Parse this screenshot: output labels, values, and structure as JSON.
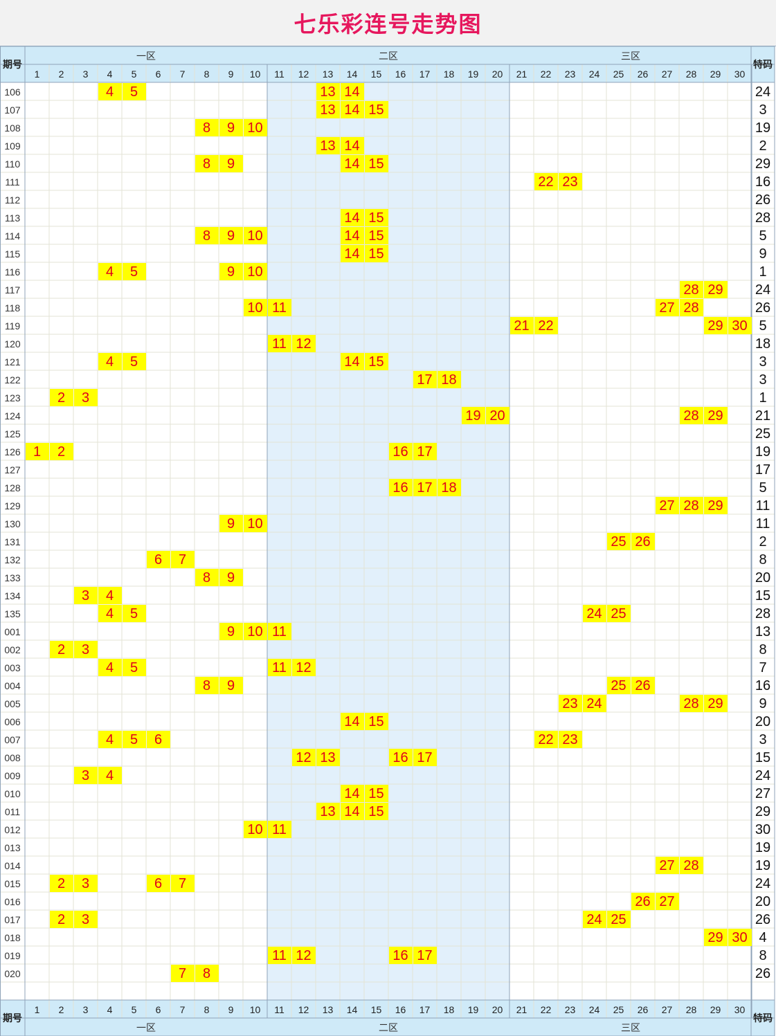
{
  "title": "七乐彩连号走势图",
  "labels": {
    "issue": "期号",
    "special": "特码"
  },
  "zones": [
    {
      "name": "一区",
      "from": 1,
      "to": 10
    },
    {
      "name": "二区",
      "from": 11,
      "to": 20
    },
    {
      "name": "三区",
      "from": 21,
      "to": 30
    }
  ],
  "colors": {
    "title": "#e6175d",
    "header_bg": "#cfeaf8",
    "zone2_bg": "#e2f0fb",
    "highlight_bg": "#ffff00",
    "highlight_text": "#e0001a"
  },
  "chart_data": {
    "type": "table",
    "columns": [
      "1",
      "2",
      "3",
      "4",
      "5",
      "6",
      "7",
      "8",
      "9",
      "10",
      "11",
      "12",
      "13",
      "14",
      "15",
      "16",
      "17",
      "18",
      "19",
      "20",
      "21",
      "22",
      "23",
      "24",
      "25",
      "26",
      "27",
      "28",
      "29",
      "30"
    ],
    "rows": [
      {
        "issue": "106",
        "nums": [
          4,
          5,
          13,
          14
        ],
        "special": "24"
      },
      {
        "issue": "107",
        "nums": [
          13,
          14,
          15
        ],
        "special": "3"
      },
      {
        "issue": "108",
        "nums": [
          8,
          9,
          10
        ],
        "special": "19"
      },
      {
        "issue": "109",
        "nums": [
          13,
          14
        ],
        "special": "2"
      },
      {
        "issue": "110",
        "nums": [
          8,
          9,
          14,
          15
        ],
        "special": "29"
      },
      {
        "issue": "111",
        "nums": [
          22,
          23
        ],
        "special": "16"
      },
      {
        "issue": "112",
        "nums": [],
        "special": "26"
      },
      {
        "issue": "113",
        "nums": [
          14,
          15
        ],
        "special": "28"
      },
      {
        "issue": "114",
        "nums": [
          8,
          9,
          10,
          14,
          15
        ],
        "special": "5"
      },
      {
        "issue": "115",
        "nums": [
          14,
          15
        ],
        "special": "9"
      },
      {
        "issue": "116",
        "nums": [
          4,
          5,
          9,
          10
        ],
        "special": "1"
      },
      {
        "issue": "117",
        "nums": [
          28,
          29
        ],
        "special": "24"
      },
      {
        "issue": "118",
        "nums": [
          10,
          11,
          27,
          28
        ],
        "special": "26"
      },
      {
        "issue": "119",
        "nums": [
          21,
          22,
          29,
          30
        ],
        "special": "5"
      },
      {
        "issue": "120",
        "nums": [
          11,
          12
        ],
        "special": "18"
      },
      {
        "issue": "121",
        "nums": [
          4,
          5,
          14,
          15
        ],
        "special": "3"
      },
      {
        "issue": "122",
        "nums": [
          17,
          18
        ],
        "special": "3"
      },
      {
        "issue": "123",
        "nums": [
          2,
          3
        ],
        "special": "1"
      },
      {
        "issue": "124",
        "nums": [
          19,
          20,
          28,
          29
        ],
        "special": "21"
      },
      {
        "issue": "125",
        "nums": [],
        "special": "25"
      },
      {
        "issue": "126",
        "nums": [
          1,
          2,
          16,
          17
        ],
        "special": "19"
      },
      {
        "issue": "127",
        "nums": [],
        "special": "17"
      },
      {
        "issue": "128",
        "nums": [
          16,
          17,
          18
        ],
        "special": "5"
      },
      {
        "issue": "129",
        "nums": [
          27,
          28,
          29
        ],
        "special": "11"
      },
      {
        "issue": "130",
        "nums": [
          9,
          10
        ],
        "special": "11"
      },
      {
        "issue": "131",
        "nums": [
          25,
          26
        ],
        "special": "2"
      },
      {
        "issue": "132",
        "nums": [
          6,
          7
        ],
        "special": "8"
      },
      {
        "issue": "133",
        "nums": [
          8,
          9
        ],
        "special": "20"
      },
      {
        "issue": "134",
        "nums": [
          3,
          4
        ],
        "special": "15"
      },
      {
        "issue": "135",
        "nums": [
          4,
          5,
          24,
          25
        ],
        "special": "28"
      },
      {
        "issue": "001",
        "nums": [
          9,
          10,
          11
        ],
        "special": "13"
      },
      {
        "issue": "002",
        "nums": [
          2,
          3
        ],
        "special": "8"
      },
      {
        "issue": "003",
        "nums": [
          4,
          5,
          11,
          12
        ],
        "special": "7"
      },
      {
        "issue": "004",
        "nums": [
          8,
          9,
          25,
          26
        ],
        "special": "16"
      },
      {
        "issue": "005",
        "nums": [
          23,
          24,
          28,
          29
        ],
        "special": "9"
      },
      {
        "issue": "006",
        "nums": [
          14,
          15
        ],
        "special": "20"
      },
      {
        "issue": "007",
        "nums": [
          4,
          5,
          6,
          22,
          23
        ],
        "special": "3"
      },
      {
        "issue": "008",
        "nums": [
          12,
          13,
          16,
          17
        ],
        "special": "15"
      },
      {
        "issue": "009",
        "nums": [
          3,
          4
        ],
        "special": "24"
      },
      {
        "issue": "010",
        "nums": [
          14,
          15
        ],
        "special": "27"
      },
      {
        "issue": "011",
        "nums": [
          13,
          14,
          15
        ],
        "special": "29"
      },
      {
        "issue": "012",
        "nums": [
          10,
          11
        ],
        "special": "30"
      },
      {
        "issue": "013",
        "nums": [],
        "special": "19"
      },
      {
        "issue": "014",
        "nums": [
          27,
          28
        ],
        "special": "19"
      },
      {
        "issue": "015",
        "nums": [
          2,
          3,
          6,
          7
        ],
        "special": "24"
      },
      {
        "issue": "016",
        "nums": [
          26,
          27
        ],
        "special": "20"
      },
      {
        "issue": "017",
        "nums": [
          2,
          3,
          24,
          25
        ],
        "special": "26"
      },
      {
        "issue": "018",
        "nums": [
          29,
          30
        ],
        "special": "4"
      },
      {
        "issue": "019",
        "nums": [
          11,
          12,
          16,
          17
        ],
        "special": "8"
      },
      {
        "issue": "020",
        "nums": [
          7,
          8
        ],
        "special": "26"
      }
    ]
  }
}
